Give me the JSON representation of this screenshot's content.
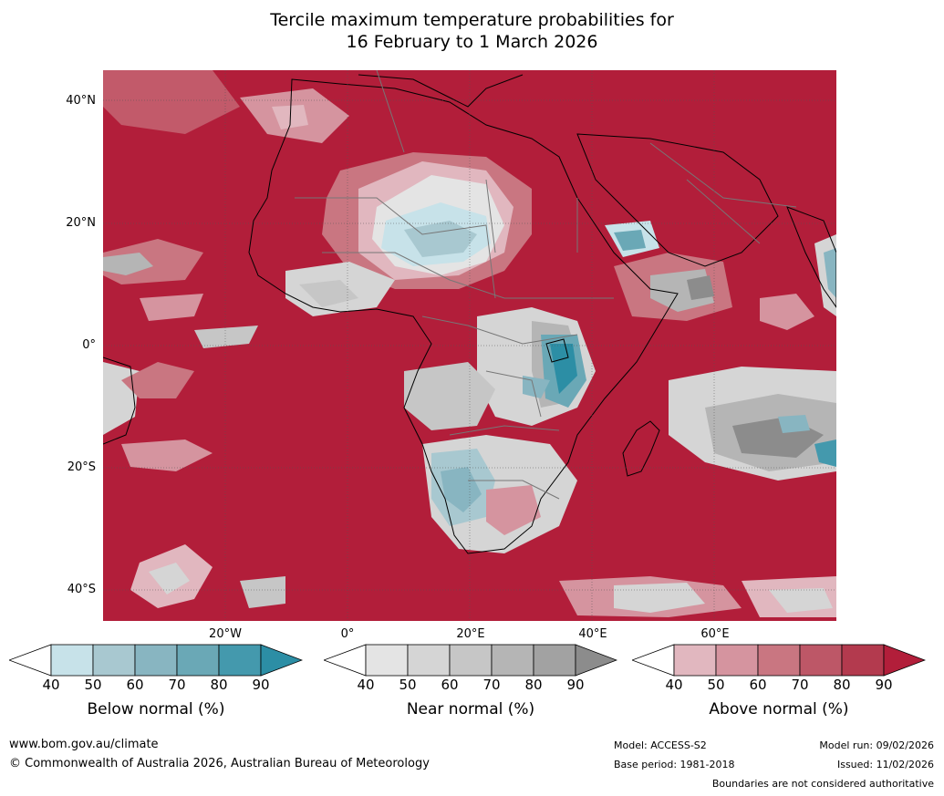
{
  "title_line1": "Tercile maximum temperature probabilities for",
  "title_line2": "16 February to 1 March 2026",
  "lat_labels": [
    "40°N",
    "20°N",
    "0°",
    "20°S",
    "40°S"
  ],
  "lon_labels": [
    "20°W",
    "0°",
    "20°E",
    "40°E",
    "60°E"
  ],
  "colorbars": [
    {
      "label": "Below normal (%)",
      "ticks": [
        "40",
        "50",
        "60",
        "70",
        "80",
        "90"
      ],
      "colors": [
        "#c7e2e9",
        "#a8c8d0",
        "#88b5c1",
        "#6aa8b6",
        "#4499ad",
        "#2c8ea5"
      ]
    },
    {
      "label": "Near normal (%)",
      "ticks": [
        "40",
        "50",
        "60",
        "70",
        "80",
        "90"
      ],
      "colors": [
        "#e4e4e4",
        "#d5d5d5",
        "#c6c6c6",
        "#b5b5b5",
        "#a2a2a2",
        "#8c8c8c"
      ]
    },
    {
      "label": "Above normal (%)",
      "ticks": [
        "40",
        "50",
        "60",
        "70",
        "80",
        "90"
      ],
      "colors": [
        "#e1b7bf",
        "#d5949f",
        "#c97681",
        "#bd5767",
        "#b33a4e",
        "#b21e3a"
      ]
    }
  ],
  "footer": {
    "website": "www.bom.gov.au/climate",
    "copyright": "© Commonwealth of Australia 2026, Australian Bureau of Meteorology",
    "model": "Model: ACCESS-S2",
    "base_period": "Base period: 1981-2018",
    "model_run": "Model run: 09/02/2026",
    "issued": "Issued: 11/02/2026",
    "disclaimer": "Boundaries are not considered authoritative"
  }
}
